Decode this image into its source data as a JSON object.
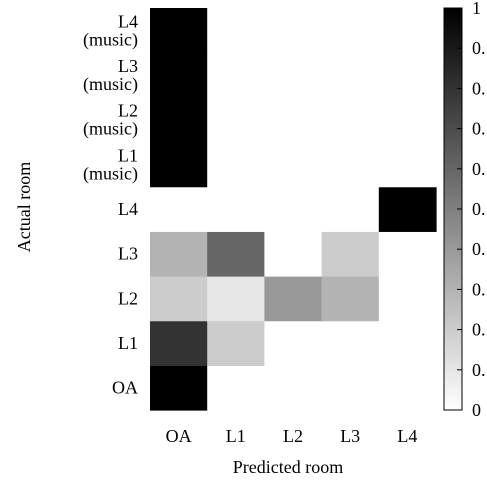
{
  "chart_data": {
    "type": "heatmap",
    "xlabel": "Predicted room",
    "ylabel": "Actual room",
    "x_categories": [
      "OA",
      "L1",
      "L2",
      "L3",
      "L4"
    ],
    "y_categories": [
      "OA",
      "L1",
      "L2",
      "L3",
      "L4",
      "L1 (music)",
      "L2 (music)",
      "L3 (music)",
      "L4 (music)"
    ],
    "y_tick_lines": [
      [
        "OA"
      ],
      [
        "L1"
      ],
      [
        "L2"
      ],
      [
        "L3"
      ],
      [
        "L4"
      ],
      [
        "L1",
        "(music)"
      ],
      [
        "L2",
        "(music)"
      ],
      [
        "L3",
        "(music)"
      ],
      [
        "L4",
        "(music)"
      ]
    ],
    "values": [
      [
        1.0,
        0.0,
        0.0,
        0.0,
        0.0
      ],
      [
        0.8,
        0.2,
        0.0,
        0.0,
        0.0
      ],
      [
        0.2,
        0.1,
        0.4,
        0.3,
        0.0
      ],
      [
        0.3,
        0.6,
        0.0,
        0.2,
        0.0
      ],
      [
        0.0,
        0.0,
        0.0,
        0.0,
        1.0
      ],
      [
        1.0,
        0.0,
        0.0,
        0.0,
        0.0
      ],
      [
        1.0,
        0.0,
        0.0,
        0.0,
        0.0
      ],
      [
        1.0,
        0.0,
        0.0,
        0.0,
        0.0
      ],
      [
        1.0,
        0.0,
        0.0,
        0.0,
        0.0
      ]
    ],
    "colorbar": {
      "range": [
        0,
        1
      ],
      "ticks": [
        "0",
        "0.",
        "0.",
        "0.",
        "0.",
        "0.",
        "0.",
        "0.",
        "0.",
        "0.",
        "1"
      ],
      "colormap": "white-to-black"
    },
    "grid": false,
    "legend": "none"
  }
}
